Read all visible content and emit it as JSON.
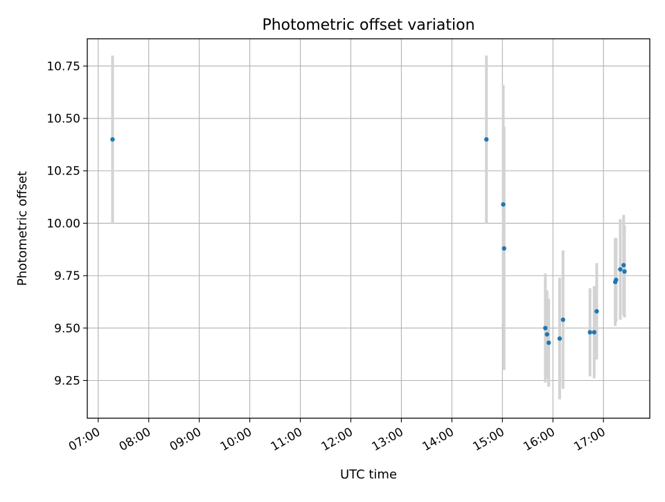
{
  "chart_data": {
    "type": "scatter",
    "title": "Photometric offset variation",
    "xlabel": "UTC time",
    "ylabel": "Photometric offset",
    "x_ticks": [
      "07:00",
      "08:00",
      "09:00",
      "10:00",
      "11:00",
      "12:00",
      "13:00",
      "14:00",
      "15:00",
      "16:00",
      "17:00"
    ],
    "y_ticks": [
      "9.25",
      "9.50",
      "9.75",
      "10.00",
      "10.25",
      "10.50",
      "10.75"
    ],
    "xlim": [
      "06:47",
      "17:55"
    ],
    "ylim": [
      9.07,
      10.88
    ],
    "grid": true,
    "point_color": "#1f77b4",
    "errorbar_color": "#d3d3d3",
    "points": [
      {
        "x": "07:17",
        "y": 10.4,
        "err": 0.4
      },
      {
        "x": "14:41",
        "y": 10.4,
        "err": 0.4
      },
      {
        "x": "15:01",
        "y": 10.09,
        "err": 0.57
      },
      {
        "x": "15:02",
        "y": 9.88,
        "err": 0.58
      },
      {
        "x": "15:51",
        "y": 9.5,
        "err": 0.26
      },
      {
        "x": "15:53",
        "y": 9.47,
        "err": 0.21
      },
      {
        "x": "15:55",
        "y": 9.43,
        "err": 0.21
      },
      {
        "x": "16:08",
        "y": 9.45,
        "err": 0.29
      },
      {
        "x": "16:12",
        "y": 9.54,
        "err": 0.33
      },
      {
        "x": "16:44",
        "y": 9.48,
        "err": 0.21
      },
      {
        "x": "16:49",
        "y": 9.48,
        "err": 0.22
      },
      {
        "x": "16:52",
        "y": 9.58,
        "err": 0.23
      },
      {
        "x": "17:14",
        "y": 9.72,
        "err": 0.21
      },
      {
        "x": "17:15",
        "y": 9.73,
        "err": 0.2
      },
      {
        "x": "17:20",
        "y": 9.78,
        "err": 0.24
      },
      {
        "x": "17:24",
        "y": 9.8,
        "err": 0.24
      },
      {
        "x": "17:25",
        "y": 9.77,
        "err": 0.22
      }
    ]
  }
}
